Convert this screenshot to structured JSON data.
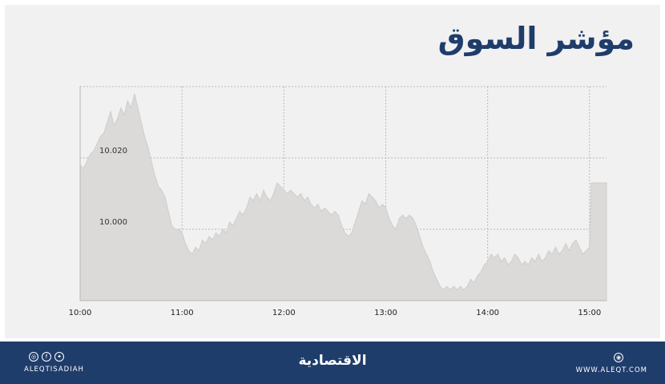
{
  "title": "مؤشر السوق",
  "chart_data": {
    "type": "area",
    "x_start": "10:00",
    "x_end": "15:10",
    "x_ticks": [
      "10:00",
      "11:00",
      "12:00",
      "13:00",
      "14:00",
      "15:00"
    ],
    "y_tick_labels": [
      "10.020",
      "10.000"
    ],
    "y_ticks": [
      10.02,
      10.0
    ],
    "ylim": [
      9.98,
      10.04
    ],
    "grid": true,
    "colors": {
      "fill": "#dcdad9",
      "stroke": "#cfcccb",
      "grid": "#b9b9b9",
      "axis": "#b5b5b5"
    },
    "points": [
      [
        "10:00",
        10.018
      ],
      [
        "10:02",
        10.017
      ],
      [
        "10:04",
        10.019
      ],
      [
        "10:06",
        10.021
      ],
      [
        "10:08",
        10.022
      ],
      [
        "10:10",
        10.024
      ],
      [
        "10:12",
        10.026
      ],
      [
        "10:14",
        10.027
      ],
      [
        "10:16",
        10.03
      ],
      [
        "10:18",
        10.033
      ],
      [
        "10:20",
        10.029
      ],
      [
        "10:22",
        10.031
      ],
      [
        "10:24",
        10.034
      ],
      [
        "10:26",
        10.032
      ],
      [
        "10:28",
        10.036
      ],
      [
        "10:30",
        10.034
      ],
      [
        "10:32",
        10.038
      ],
      [
        "10:34",
        10.034
      ],
      [
        "10:36",
        10.03
      ],
      [
        "10:38",
        10.026
      ],
      [
        "10:40",
        10.023
      ],
      [
        "10:42",
        10.019
      ],
      [
        "10:44",
        10.015
      ],
      [
        "10:46",
        10.012
      ],
      [
        "10:48",
        10.011
      ],
      [
        "10:50",
        10.009
      ],
      [
        "10:52",
        10.005
      ],
      [
        "10:54",
        10.001
      ],
      [
        "10:56",
        10.0
      ],
      [
        "10:58",
        10.0
      ],
      [
        "11:00",
        9.999
      ],
      [
        "11:02",
        9.996
      ],
      [
        "11:04",
        9.994
      ],
      [
        "11:06",
        9.993
      ],
      [
        "11:08",
        9.995
      ],
      [
        "11:10",
        9.994
      ],
      [
        "11:12",
        9.997
      ],
      [
        "11:14",
        9.996
      ],
      [
        "11:16",
        9.998
      ],
      [
        "11:18",
        9.997
      ],
      [
        "11:20",
        9.999
      ],
      [
        "11:22",
        9.998
      ],
      [
        "11:24",
        10.0
      ],
      [
        "11:26",
        9.999
      ],
      [
        "11:28",
        10.002
      ],
      [
        "11:30",
        10.001
      ],
      [
        "11:32",
        10.003
      ],
      [
        "11:34",
        10.005
      ],
      [
        "11:36",
        10.004
      ],
      [
        "11:38",
        10.006
      ],
      [
        "11:40",
        10.009
      ],
      [
        "11:42",
        10.008
      ],
      [
        "11:44",
        10.01
      ],
      [
        "11:46",
        10.008
      ],
      [
        "11:48",
        10.011
      ],
      [
        "11:50",
        10.009
      ],
      [
        "11:52",
        10.008
      ],
      [
        "11:54",
        10.01
      ],
      [
        "11:56",
        10.013
      ],
      [
        "11:58",
        10.012
      ],
      [
        "12:00",
        10.011
      ],
      [
        "12:02",
        10.01
      ],
      [
        "12:04",
        10.011
      ],
      [
        "12:06",
        10.01
      ],
      [
        "12:08",
        10.009
      ],
      [
        "12:10",
        10.01
      ],
      [
        "12:12",
        10.008
      ],
      [
        "12:14",
        10.009
      ],
      [
        "12:16",
        10.007
      ],
      [
        "12:18",
        10.006
      ],
      [
        "12:20",
        10.007
      ],
      [
        "12:22",
        10.005
      ],
      [
        "12:24",
        10.006
      ],
      [
        "12:26",
        10.005
      ],
      [
        "12:28",
        10.004
      ],
      [
        "12:30",
        10.005
      ],
      [
        "12:32",
        10.004
      ],
      [
        "12:34",
        10.001
      ],
      [
        "12:36",
        9.999
      ],
      [
        "12:38",
        9.998
      ],
      [
        "12:40",
        9.999
      ],
      [
        "12:42",
        10.002
      ],
      [
        "12:44",
        10.005
      ],
      [
        "12:46",
        10.008
      ],
      [
        "12:48",
        10.007
      ],
      [
        "12:50",
        10.01
      ],
      [
        "12:52",
        10.009
      ],
      [
        "12:54",
        10.008
      ],
      [
        "12:56",
        10.006
      ],
      [
        "12:58",
        10.007
      ],
      [
        "13:00",
        10.006
      ],
      [
        "13:02",
        10.003
      ],
      [
        "13:04",
        10.001
      ],
      [
        "13:06",
        10.0
      ],
      [
        "13:08",
        10.003
      ],
      [
        "13:10",
        10.004
      ],
      [
        "13:12",
        10.003
      ],
      [
        "13:14",
        10.004
      ],
      [
        "13:16",
        10.003
      ],
      [
        "13:18",
        10.001
      ],
      [
        "13:20",
        9.998
      ],
      [
        "13:22",
        9.995
      ],
      [
        "13:24",
        9.993
      ],
      [
        "13:26",
        9.991
      ],
      [
        "13:28",
        9.988
      ],
      [
        "13:30",
        9.986
      ],
      [
        "13:32",
        9.984
      ],
      [
        "13:34",
        9.983
      ],
      [
        "13:36",
        9.984
      ],
      [
        "13:38",
        9.983
      ],
      [
        "13:40",
        9.984
      ],
      [
        "13:42",
        9.983
      ],
      [
        "13:44",
        9.984
      ],
      [
        "13:46",
        9.983
      ],
      [
        "13:48",
        9.984
      ],
      [
        "13:50",
        9.986
      ],
      [
        "13:52",
        9.985
      ],
      [
        "13:54",
        9.987
      ],
      [
        "13:56",
        9.988
      ],
      [
        "13:58",
        9.99
      ],
      [
        "14:00",
        9.991
      ],
      [
        "14:02",
        9.993
      ],
      [
        "14:04",
        9.992
      ],
      [
        "14:06",
        9.993
      ],
      [
        "14:08",
        9.991
      ],
      [
        "14:10",
        9.992
      ],
      [
        "14:12",
        9.99
      ],
      [
        "14:14",
        9.991
      ],
      [
        "14:16",
        9.993
      ],
      [
        "14:18",
        9.992
      ],
      [
        "14:20",
        9.99
      ],
      [
        "14:22",
        9.991
      ],
      [
        "14:24",
        9.99
      ],
      [
        "14:26",
        9.992
      ],
      [
        "14:28",
        9.991
      ],
      [
        "14:30",
        9.993
      ],
      [
        "14:32",
        9.991
      ],
      [
        "14:34",
        9.992
      ],
      [
        "14:36",
        9.994
      ],
      [
        "14:38",
        9.993
      ],
      [
        "14:40",
        9.995
      ],
      [
        "14:42",
        9.993
      ],
      [
        "14:44",
        9.994
      ],
      [
        "14:46",
        9.996
      ],
      [
        "14:48",
        9.994
      ],
      [
        "14:50",
        9.996
      ],
      [
        "14:52",
        9.997
      ],
      [
        "14:54",
        9.995
      ],
      [
        "14:56",
        9.993
      ],
      [
        "14:58",
        9.994
      ],
      [
        "15:00",
        9.995
      ],
      [
        "15:01",
        10.013
      ],
      [
        "15:10",
        10.013
      ]
    ]
  },
  "footer": {
    "brand": "الاقتصادية",
    "handle": "ALEQTISADIAH",
    "website": "WWW.ALEQT.COM",
    "social_icons": [
      "instagram-icon",
      "facebook-icon",
      "twitter-icon"
    ],
    "web_icon": "globe-icon"
  }
}
